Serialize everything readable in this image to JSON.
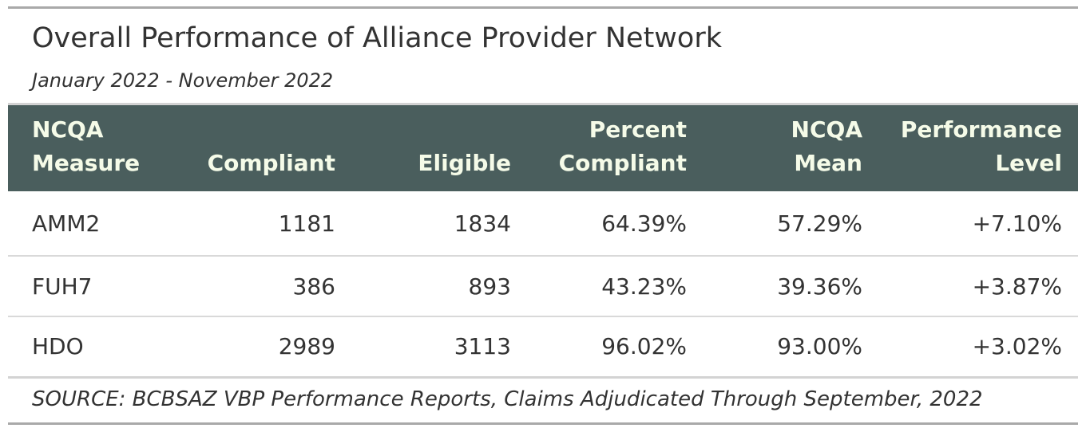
{
  "header": {
    "title": "Overall Performance of Alliance Provider Network",
    "subtitle": "January 2022 - November 2022"
  },
  "table": {
    "columns": [
      {
        "line1": "NCQA",
        "line2": "Measure"
      },
      {
        "line1": "",
        "line2": "Compliant"
      },
      {
        "line1": "",
        "line2": "Eligible"
      },
      {
        "line1": "Percent",
        "line2": "Compliant"
      },
      {
        "line1": "NCQA",
        "line2": "Mean"
      },
      {
        "line1": "Performance",
        "line2": "Level"
      }
    ],
    "rows": [
      {
        "measure": "AMM2",
        "compliant": "1181",
        "eligible": "1834",
        "percent": "64.39%",
        "mean": "57.29%",
        "level": "+7.10%"
      },
      {
        "measure": "FUH7",
        "compliant": "386",
        "eligible": "893",
        "percent": "43.23%",
        "mean": "39.36%",
        "level": "+3.87%"
      },
      {
        "measure": "HDO",
        "compliant": "2989",
        "eligible": "3113",
        "percent": "96.02%",
        "mean": "93.00%",
        "level": "+3.02%"
      }
    ]
  },
  "footer": {
    "source": "SOURCE: BCBSAZ VBP Performance Reports, Claims Adjudicated Through September, 2022"
  },
  "colors": {
    "header_background": "#4a5e5d",
    "header_text": "#f5fbe8",
    "body_text": "#333333"
  }
}
